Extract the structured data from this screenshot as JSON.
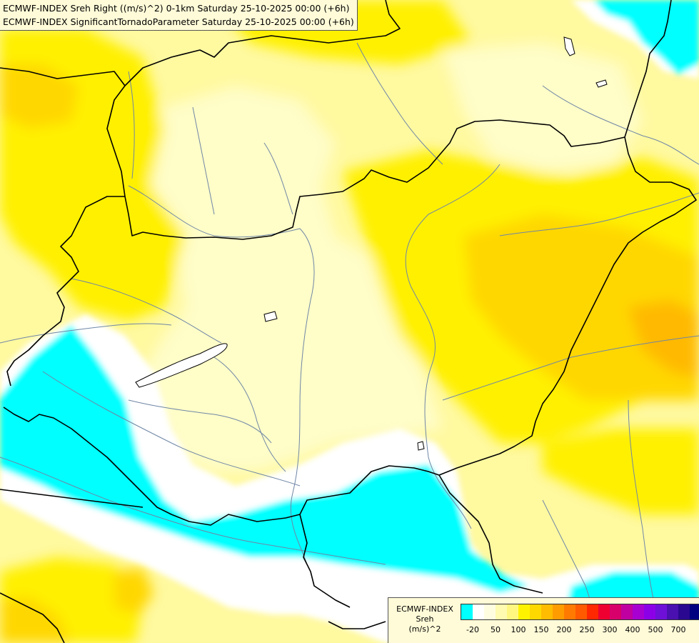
{
  "header": {
    "line1": "ECMWF-INDEX Sreh Right ((m/s)^2) 0-1km Saturday 25-10-2025 00:00 (+6h)",
    "line2": "ECMWF-INDEX SignificantTornadoParameter Saturday 25-10-2025 00:00 (+6h)"
  },
  "legend": {
    "title_line1": "ECMWF-INDEX",
    "title_line2": "Sreh",
    "title_line3": "(m/s)^2",
    "colors": [
      "#00ffff",
      "#ffffff",
      "#fffde0",
      "#fffbb0",
      "#fff780",
      "#fff200",
      "#ffd800",
      "#ffbc00",
      "#ff9c00",
      "#ff7a00",
      "#ff5a00",
      "#ff2800",
      "#ee0030",
      "#d8006a",
      "#c000a0",
      "#a800d0",
      "#8c00e8",
      "#6e10d8",
      "#4a10b0",
      "#2a0890",
      "#000080"
    ],
    "ticks": [
      "-20",
      "50",
      "100",
      "150",
      "200",
      "250",
      "300",
      "400",
      "500",
      "700"
    ]
  },
  "map": {
    "field_colors": {
      "cyan": "#00ffff",
      "white": "#ffffff",
      "pale": "#fffdc8",
      "light_yellow": "#fff9a0",
      "yellow": "#fff000",
      "gold": "#ffd700",
      "orange": "#ffb900"
    },
    "border_color": "#000000",
    "river_color": "#6f86a6"
  }
}
